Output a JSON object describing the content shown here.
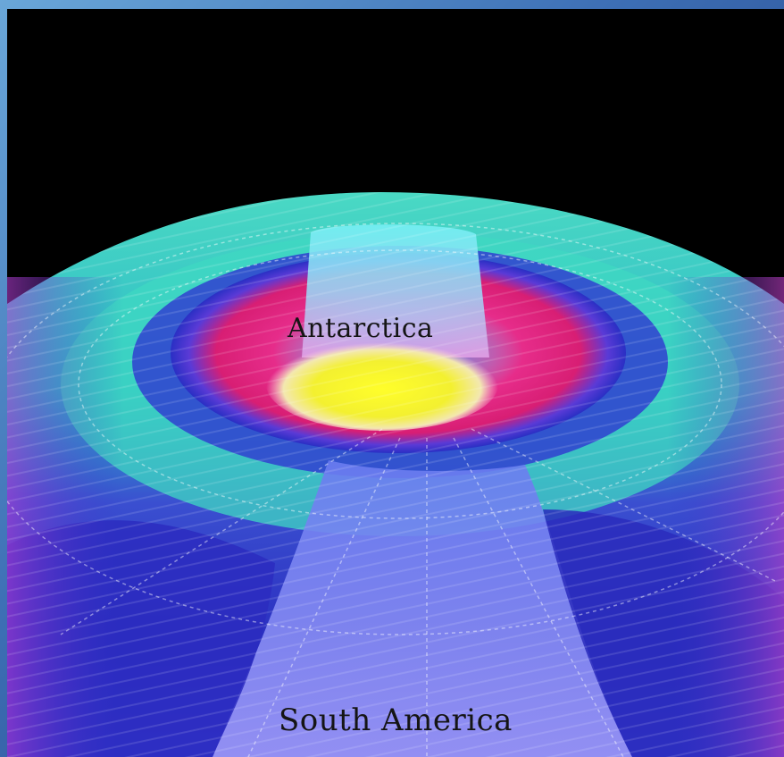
{
  "map": {
    "labels": {
      "antarctica": "Antarctica",
      "south_america": "South America"
    },
    "colors": {
      "space_background": "#000000",
      "ozone_hole_core": "#ffff1e",
      "ozone_hole_ring": "#e0207a",
      "ring_teal": "#46e0c8",
      "mid_latitude_blue": "#2a30c8",
      "low_latitude_violet": "#8a86f0"
    }
  }
}
